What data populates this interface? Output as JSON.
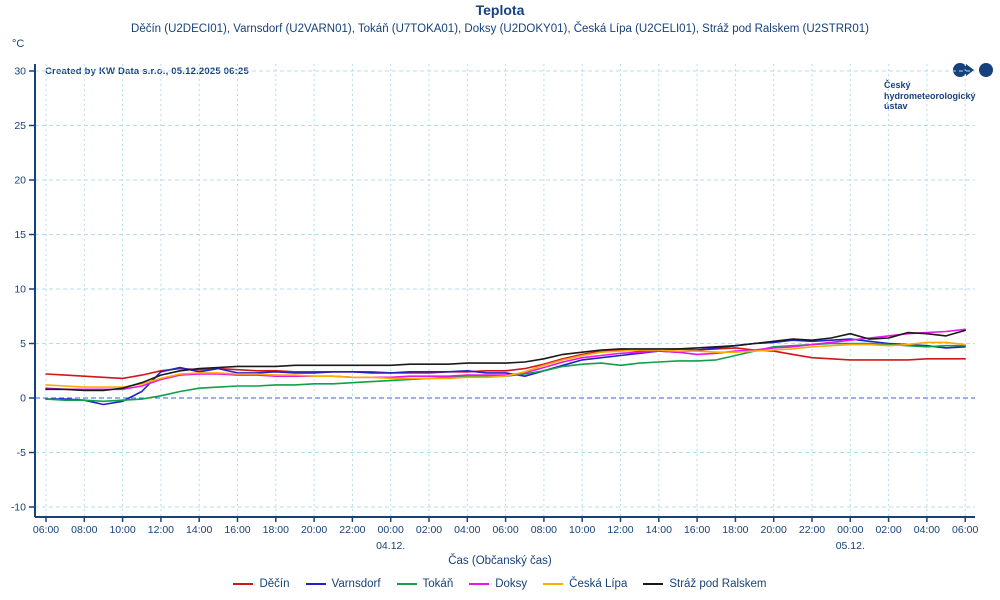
{
  "header": {
    "title": "Teplota",
    "subtitle": "Děčín (U2DECI01), Varnsdorf (U2VARN01), Tokáň (U7TOKA01), Doksy (U2DOKY01), Česká Lípa (U2CELI01), Stráž pod Ralskem (U2STRR01)",
    "unit_label": "°C",
    "watermark": "Created by KW Data s.r.o., 05.12.2025 06:25",
    "logo_lines": [
      "Český",
      "hydrometeorologický",
      "ústav"
    ]
  },
  "colors": {
    "text_navy": "#16417c",
    "axis": "#16417c",
    "grid_light": "#b5dcec",
    "zero_line": "#3a62d8",
    "background": "#ffffff"
  },
  "chart_data": {
    "type": "line",
    "title": "Teplota",
    "subtitle": "Děčín (U2DECI01), Varnsdorf (U2VARN01), Tokáň (U7TOKA01), Doksy (U2DOKY01), Česká Lípa (U2CELI01), Stráž pod Ralskem (U2STRR01)",
    "xlabel": "Čas (Občanský čas)",
    "ylabel": "°C",
    "ylim": [
      -10,
      30
    ],
    "y_ticks": [
      30,
      25,
      20,
      15,
      10,
      5,
      0,
      -5,
      -10
    ],
    "grid": true,
    "legend_position": "bottom",
    "x_tick_labels": [
      "06:00",
      "08:00",
      "10:00",
      "12:00",
      "14:00",
      "16:00",
      "18:00",
      "20:00",
      "22:00",
      "00:00",
      "02:00",
      "04:00",
      "06:00",
      "08:00",
      "10:00",
      "12:00",
      "14:00",
      "16:00",
      "18:00",
      "20:00",
      "22:00",
      "00:00",
      "02:00",
      "04:00",
      "06:00"
    ],
    "date_labels": [
      {
        "label": "04.12.",
        "tick_index": 9
      },
      {
        "label": "05.12.",
        "tick_index": 21
      }
    ],
    "x_unit": "hours, 1h sampling from 03.12. 06:00 to 05.12. 06:00",
    "series": [
      {
        "name": "Děčín",
        "color": "#d01818",
        "values": [
          2.2,
          2.1,
          2.0,
          1.9,
          1.8,
          2.1,
          2.5,
          2.7,
          2.6,
          2.7,
          2.6,
          2.5,
          2.5,
          2.4,
          2.4,
          2.4,
          2.4,
          2.4,
          2.3,
          2.3,
          2.3,
          2.4,
          2.4,
          2.5,
          2.5,
          2.7,
          3.1,
          3.6,
          4.0,
          4.3,
          4.4,
          4.3,
          4.4,
          4.5,
          4.4,
          4.5,
          4.6,
          4.4,
          4.3,
          4.0,
          3.7,
          3.6,
          3.5,
          3.5,
          3.5,
          3.5,
          3.6,
          3.6,
          3.6
        ]
      },
      {
        "name": "Varnsdorf",
        "color": "#2222c8",
        "values": [
          -0.1,
          -0.1,
          -0.2,
          -0.6,
          -0.3,
          0.6,
          2.4,
          2.8,
          2.4,
          2.7,
          2.3,
          2.3,
          2.4,
          2.3,
          2.3,
          2.4,
          2.4,
          2.3,
          2.3,
          2.4,
          2.4,
          2.4,
          2.5,
          2.3,
          2.3,
          2.0,
          2.5,
          3.0,
          3.5,
          3.7,
          3.9,
          4.1,
          4.3,
          4.2,
          4.4,
          4.6,
          4.8,
          5.0,
          5.1,
          5.3,
          5.2,
          5.3,
          5.4,
          5.2,
          5.0,
          4.9,
          4.8,
          4.6,
          4.7
        ]
      },
      {
        "name": "Tokáň",
        "color": "#10a04a",
        "values": [
          -0.1,
          -0.2,
          -0.2,
          -0.3,
          -0.2,
          -0.1,
          0.2,
          0.6,
          0.9,
          1.0,
          1.1,
          1.1,
          1.2,
          1.2,
          1.3,
          1.3,
          1.4,
          1.5,
          1.6,
          1.7,
          1.8,
          1.9,
          2.0,
          2.0,
          2.0,
          2.2,
          2.5,
          2.9,
          3.1,
          3.2,
          3.0,
          3.2,
          3.3,
          3.4,
          3.4,
          3.5,
          3.9,
          4.3,
          4.7,
          4.8,
          4.9,
          5.0,
          5.0,
          5.0,
          4.9,
          4.8,
          4.7,
          4.8,
          4.8
        ]
      },
      {
        "name": "Doksy",
        "color": "#ea14ea",
        "values": [
          0.9,
          0.8,
          0.8,
          0.8,
          0.8,
          1.1,
          1.7,
          2.1,
          2.2,
          2.2,
          2.1,
          2.1,
          2.0,
          2.0,
          2.0,
          2.0,
          1.9,
          1.9,
          1.9,
          2.0,
          2.0,
          2.0,
          2.1,
          2.1,
          2.1,
          2.3,
          2.8,
          3.3,
          3.7,
          3.9,
          4.1,
          4.2,
          4.3,
          4.2,
          4.0,
          4.1,
          4.3,
          4.4,
          4.6,
          4.7,
          4.9,
          5.1,
          5.3,
          5.5,
          5.7,
          5.9,
          6.0,
          6.1,
          6.3
        ]
      },
      {
        "name": "Česká Lípa",
        "color": "#ffaa00",
        "values": [
          1.2,
          1.1,
          1.0,
          1.0,
          1.0,
          1.3,
          1.8,
          2.2,
          2.3,
          2.3,
          2.2,
          2.2,
          2.1,
          2.1,
          2.0,
          2.0,
          1.9,
          1.9,
          1.8,
          1.8,
          1.8,
          1.8,
          1.9,
          1.9,
          2.0,
          2.4,
          3.0,
          3.5,
          3.9,
          4.2,
          4.3,
          4.4,
          4.4,
          4.3,
          4.3,
          4.2,
          4.2,
          4.3,
          4.4,
          4.5,
          4.7,
          4.8,
          4.9,
          4.9,
          4.8,
          4.9,
          5.1,
          5.1,
          4.9
        ]
      },
      {
        "name": "Stráž pod Ralskem",
        "color": "#1a1a1a",
        "values": [
          0.8,
          0.8,
          0.7,
          0.7,
          0.9,
          1.4,
          2.1,
          2.5,
          2.7,
          2.8,
          2.9,
          2.9,
          2.9,
          3.0,
          3.0,
          3.0,
          3.0,
          3.0,
          3.0,
          3.1,
          3.1,
          3.1,
          3.2,
          3.2,
          3.2,
          3.3,
          3.6,
          4.0,
          4.2,
          4.4,
          4.5,
          4.5,
          4.5,
          4.5,
          4.6,
          4.7,
          4.8,
          5.0,
          5.2,
          5.4,
          5.3,
          5.5,
          5.9,
          5.4,
          5.5,
          6.0,
          5.9,
          5.7,
          6.2
        ]
      }
    ]
  }
}
